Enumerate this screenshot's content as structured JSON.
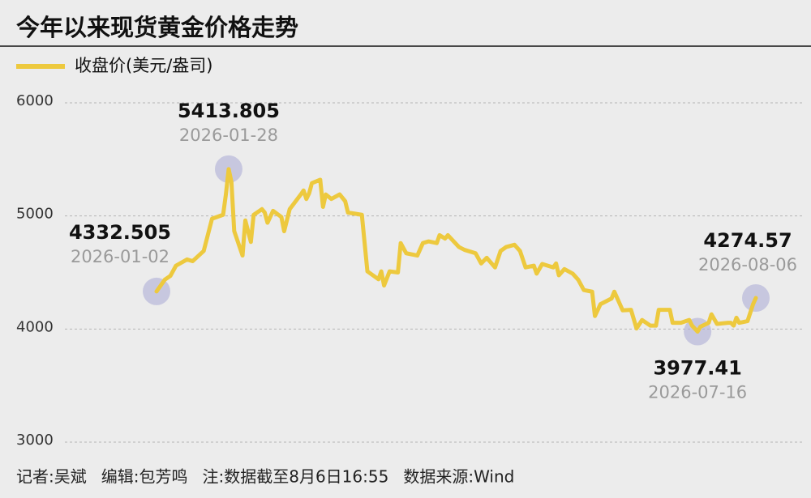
{
  "chart_data": {
    "type": "line",
    "title": "今年以来现货黄金价格走势",
    "footer": [
      "记者:吴斌",
      "编辑:包芳鸣",
      "注:数据截至8月6日16:55",
      "数据来源:Wind"
    ],
    "xlim": [
      "2026-01-02",
      "2026-08-06"
    ],
    "ylim": [
      3000,
      6000
    ],
    "yticks": [
      3000,
      4000,
      5000,
      6000
    ],
    "grid": true,
    "x": [
      "2026-01-02",
      "2026-01-05",
      "2026-01-07",
      "2026-01-09",
      "2026-01-13",
      "2026-01-15",
      "2026-01-19",
      "2026-01-22",
      "2026-01-26",
      "2026-01-27",
      "2026-01-28",
      "2026-01-29",
      "2026-01-30",
      "2026-02-02",
      "2026-02-03",
      "2026-02-05",
      "2026-02-06",
      "2026-02-09",
      "2026-02-10",
      "2026-02-11",
      "2026-02-13",
      "2026-02-16",
      "2026-02-17",
      "2026-02-19",
      "2026-02-23",
      "2026-02-24",
      "2026-02-25",
      "2026-02-26",
      "2026-02-27",
      "2026-03-02",
      "2026-03-03",
      "2026-03-04",
      "2026-03-06",
      "2026-03-09",
      "2026-03-11",
      "2026-03-12",
      "2026-03-17",
      "2026-03-19",
      "2026-03-23",
      "2026-03-24",
      "2026-03-25",
      "2026-03-27",
      "2026-03-30",
      "2026-03-31",
      "2026-04-02",
      "2026-04-06",
      "2026-04-08",
      "2026-04-10",
      "2026-04-13",
      "2026-04-14",
      "2026-04-16",
      "2026-04-17",
      "2026-04-21",
      "2026-04-23",
      "2026-04-27",
      "2026-04-29",
      "2026-05-01",
      "2026-05-04",
      "2026-05-06",
      "2026-05-08",
      "2026-05-11",
      "2026-05-13",
      "2026-05-15",
      "2026-05-18",
      "2026-05-19",
      "2026-05-21",
      "2026-05-25",
      "2026-05-26",
      "2026-05-27",
      "2026-05-29",
      "2026-06-01",
      "2026-06-03",
      "2026-06-05",
      "2026-06-08",
      "2026-06-09",
      "2026-06-11",
      "2026-06-15",
      "2026-06-16",
      "2026-06-18",
      "2026-06-19",
      "2026-06-22",
      "2026-06-24",
      "2026-06-26",
      "2026-06-29",
      "2026-07-01",
      "2026-07-02",
      "2026-07-06",
      "2026-07-07",
      "2026-07-10",
      "2026-07-13",
      "2026-07-14",
      "2026-07-16",
      "2026-07-17",
      "2026-07-20",
      "2026-07-21",
      "2026-07-23",
      "2026-07-27",
      "2026-07-28",
      "2026-07-29",
      "2026-07-30",
      "2026-07-31",
      "2026-08-03",
      "2026-08-05",
      "2026-08-06"
    ],
    "series": [
      {
        "name": "收盘价(美元/盎司)",
        "color": "#edc93e",
        "values": [
          4332.505,
          4437,
          4470,
          4560,
          4615,
          4600,
          4690,
          4975,
          5010,
          5190,
          5413.805,
          5300,
          4866,
          4650,
          4960,
          4770,
          5010,
          5060,
          5030,
          4940,
          5045,
          4990,
          4865,
          5060,
          5190,
          5225,
          5150,
          5200,
          5290,
          5320,
          5080,
          5190,
          5150,
          5190,
          5130,
          5030,
          5010,
          4510,
          4440,
          4510,
          4385,
          4510,
          4500,
          4760,
          4670,
          4650,
          4760,
          4775,
          4760,
          4830,
          4800,
          4830,
          4725,
          4700,
          4670,
          4580,
          4630,
          4545,
          4690,
          4725,
          4745,
          4690,
          4545,
          4560,
          4490,
          4575,
          4545,
          4580,
          4475,
          4530,
          4490,
          4435,
          4345,
          4330,
          4115,
          4220,
          4270,
          4330,
          4220,
          4165,
          4170,
          4005,
          4080,
          4030,
          4030,
          4170,
          4170,
          4055,
          4055,
          4080,
          4030,
          3977.41,
          4020,
          4055,
          4130,
          4045,
          4055,
          4055,
          4030,
          4100,
          4055,
          4070,
          4220,
          4274.57
        ]
      }
    ],
    "annotations": [
      {
        "x": "2026-01-02",
        "value": 4332.505
      },
      {
        "x": "2026-01-28",
        "value": 5413.805
      },
      {
        "x": "2026-07-16",
        "value": 3977.41
      },
      {
        "x": "2026-08-06",
        "value": 4274.57
      }
    ]
  }
}
